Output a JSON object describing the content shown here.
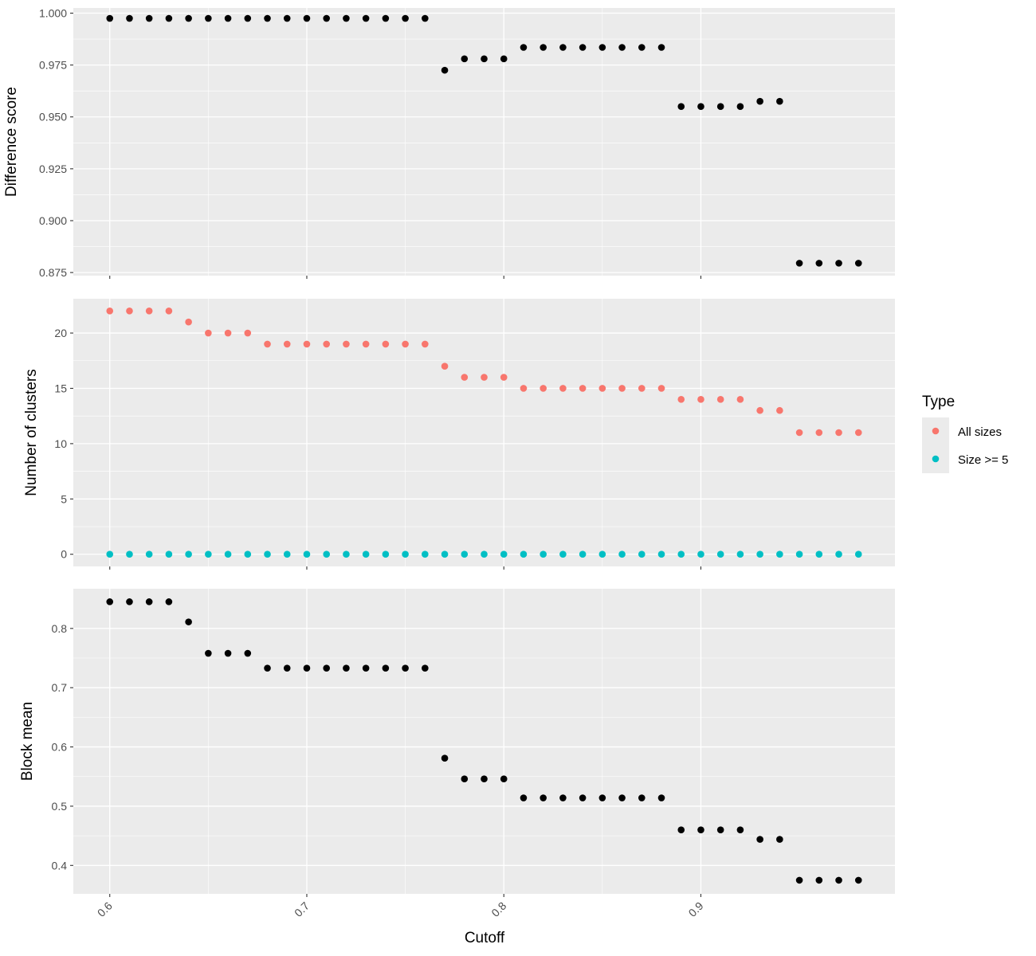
{
  "chart_data": {
    "type": "scatter",
    "xlabel": "Cutoff",
    "x": [
      0.6,
      0.61,
      0.62,
      0.63,
      0.64,
      0.65,
      0.66,
      0.67,
      0.68,
      0.69,
      0.7,
      0.71,
      0.72,
      0.73,
      0.74,
      0.75,
      0.76,
      0.77,
      0.78,
      0.79,
      0.8,
      0.81,
      0.82,
      0.83,
      0.84,
      0.85,
      0.86,
      0.87,
      0.88,
      0.89,
      0.9,
      0.91,
      0.92,
      0.93,
      0.94,
      0.95,
      0.96,
      0.97,
      0.98
    ],
    "xlim": [
      0.5815,
      0.9985
    ],
    "xticks": [
      0.6,
      0.7,
      0.8,
      0.9
    ],
    "xtick_labels": [
      "0.6",
      "0.7",
      "0.8",
      "0.9"
    ],
    "grid": true,
    "panels": [
      {
        "ylabel": "Difference score",
        "ylim": [
          0.8735,
          1.0025
        ],
        "yticks": [
          0.875,
          0.9,
          0.925,
          0.95,
          0.975,
          1.0
        ],
        "ytick_labels": [
          "0.875",
          "0.900",
          "0.925",
          "0.950",
          "0.975",
          "1.000"
        ],
        "series": [
          {
            "color": "#000000",
            "values": [
              0.9975,
              0.9975,
              0.9975,
              0.9975,
              0.9975,
              0.9975,
              0.9975,
              0.9975,
              0.9975,
              0.9975,
              0.9975,
              0.9975,
              0.9975,
              0.9975,
              0.9975,
              0.9975,
              0.9975,
              0.9725,
              0.978,
              0.978,
              0.978,
              0.9835,
              0.9835,
              0.9835,
              0.9835,
              0.9835,
              0.9835,
              0.9835,
              0.9835,
              0.955,
              0.955,
              0.955,
              0.955,
              0.9575,
              0.9575,
              0.8795,
              0.8795,
              0.8795,
              0.8795
            ]
          }
        ]
      },
      {
        "ylabel": "Number of clusters",
        "ylim": [
          -1.1,
          23.1
        ],
        "yticks": [
          0,
          5,
          10,
          15,
          20
        ],
        "ytick_labels": [
          "0",
          "5",
          "10",
          "15",
          "20"
        ],
        "series": [
          {
            "name": "All sizes",
            "color": "#f8766d",
            "values": [
              22,
              22,
              22,
              22,
              21,
              20,
              20,
              20,
              19,
              19,
              19,
              19,
              19,
              19,
              19,
              19,
              19,
              17,
              16,
              16,
              16,
              15,
              15,
              15,
              15,
              15,
              15,
              15,
              15,
              14,
              14,
              14,
              14,
              13,
              13,
              11,
              11,
              11,
              11
            ]
          },
          {
            "name": "Size >= 5",
            "color": "#00bfc4",
            "values": [
              0,
              0,
              0,
              0,
              0,
              0,
              0,
              0,
              0,
              0,
              0,
              0,
              0,
              0,
              0,
              0,
              0,
              0,
              0,
              0,
              0,
              0,
              0,
              0,
              0,
              0,
              0,
              0,
              0,
              0,
              0,
              0,
              0,
              0,
              0,
              0,
              0,
              0,
              0
            ]
          }
        ]
      },
      {
        "ylabel": "Block mean",
        "ylim": [
          0.352,
          0.867
        ],
        "yticks": [
          0.4,
          0.5,
          0.6,
          0.7,
          0.8
        ],
        "ytick_labels": [
          "0.4",
          "0.5",
          "0.6",
          "0.7",
          "0.8"
        ],
        "series": [
          {
            "color": "#000000",
            "values": [
              0.845,
              0.845,
              0.845,
              0.845,
              0.811,
              0.758,
              0.758,
              0.758,
              0.733,
              0.733,
              0.733,
              0.733,
              0.733,
              0.733,
              0.733,
              0.733,
              0.733,
              0.581,
              0.546,
              0.546,
              0.546,
              0.514,
              0.514,
              0.514,
              0.514,
              0.514,
              0.514,
              0.514,
              0.514,
              0.46,
              0.46,
              0.46,
              0.46,
              0.444,
              0.444,
              0.375,
              0.375,
              0.375,
              0.375
            ]
          }
        ]
      }
    ],
    "legend": {
      "title": "Type",
      "placement": "right",
      "entries": [
        {
          "label": "All sizes",
          "color": "#f8766d"
        },
        {
          "label": "Size >= 5",
          "color": "#00bfc4"
        }
      ]
    },
    "panel_background": "#ebebeb",
    "grid_color": "#ffffff"
  }
}
